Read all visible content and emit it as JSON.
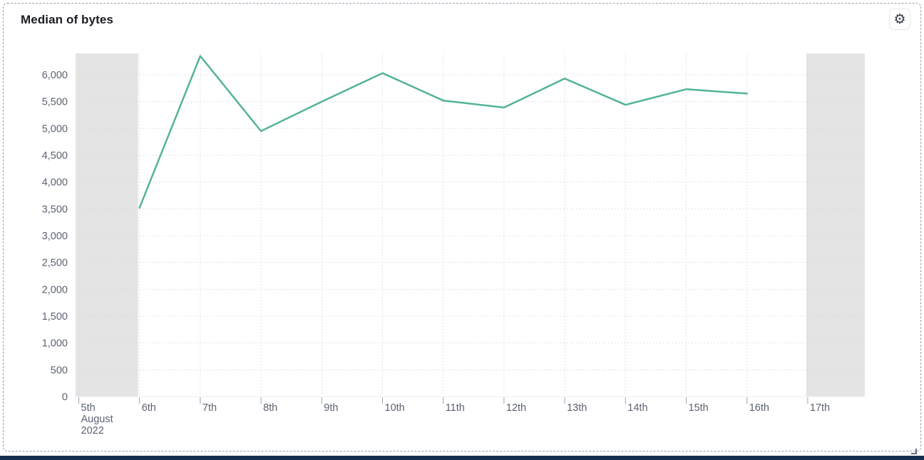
{
  "panel": {
    "title": "Median of bytes"
  },
  "icons": {
    "gear": "⚙"
  },
  "colors": {
    "line": "#54b399",
    "partial_band": "#e4e4e4",
    "grid": "#d9d9d9",
    "axis_text": "#5b6270",
    "tick_mark": "#9aa2b0",
    "title_text": "#1a1c21",
    "bottom_bar": "#14304f"
  },
  "chart_data": {
    "type": "line",
    "title": "Median of bytes",
    "series_name": "Median of bytes",
    "x_axis_context": "August 2022",
    "x": [
      "6th",
      "7th",
      "8th",
      "9th",
      "10th",
      "11th",
      "12th",
      "13th",
      "14th",
      "15th",
      "16th"
    ],
    "values": [
      3520,
      6350,
      4950,
      5500,
      6030,
      5520,
      5390,
      5930,
      5440,
      5730,
      5650
    ],
    "x_axis_ticks": [
      "5th",
      "6th",
      "7th",
      "8th",
      "9th",
      "10th",
      "11th",
      "12th",
      "13th",
      "14th",
      "15th",
      "16th",
      "17th"
    ],
    "x_first_tick_label_lines": [
      "5th",
      "August",
      "2022"
    ],
    "y_ticks": [
      0,
      500,
      1000,
      1500,
      2000,
      2500,
      3000,
      3500,
      4000,
      4500,
      5000,
      5500,
      6000
    ],
    "y_tick_labels": [
      "0",
      "500",
      "1,000",
      "1,500",
      "2,000",
      "2,500",
      "3,000",
      "3,500",
      "4,000",
      "4,500",
      "5,000",
      "5,500",
      "6,000"
    ],
    "ylim": [
      0,
      6500
    ],
    "grid": true,
    "legend": "none",
    "partial_data_bands": [
      "5th to 6th",
      "17th to end"
    ]
  }
}
